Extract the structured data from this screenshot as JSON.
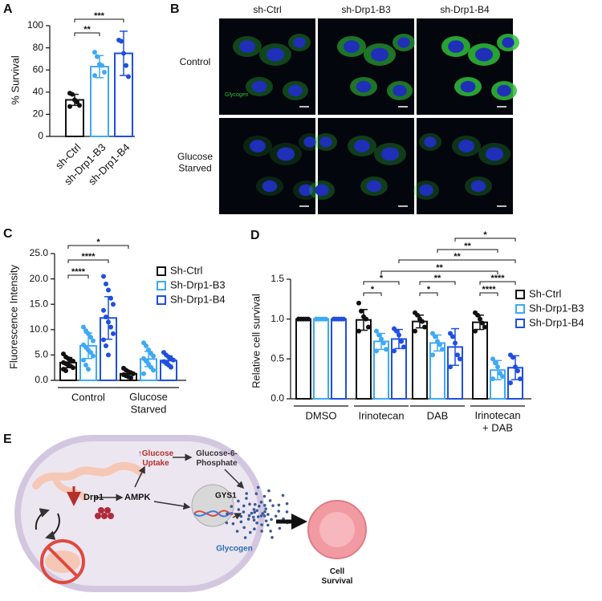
{
  "panels": [
    "A",
    "B",
    "C",
    "D",
    "E"
  ],
  "chart_data": [
    {
      "type": "bar",
      "ylabel": "% Survival",
      "categories": [
        "sh-Ctrl",
        "sh-Drp1-B3",
        "sh-Drp1-B4"
      ],
      "values": [
        33,
        63,
        75
      ],
      "errors": [
        5,
        10,
        20
      ],
      "points": [
        [
          39,
          38,
          33,
          31,
          28,
          27
        ],
        [
          76,
          72,
          65,
          64,
          58,
          55
        ],
        [
          87,
          86,
          75,
          64,
          54
        ]
      ],
      "colors": [
        "#111111",
        "#3ea9f5",
        "#1f4fe0"
      ],
      "ylim": [
        0,
        100
      ],
      "yticks": [
        0,
        20,
        40,
        60,
        80,
        100
      ],
      "significance": [
        "**",
        "***"
      ]
    },
    {
      "type": "bar",
      "ylabel": "Fluorescence Intensity",
      "categories": [
        "Control",
        "Glucose\nStarved"
      ],
      "series": [
        {
          "name": "Sh-Ctrl",
          "color": "#111111",
          "values": [
            3.5,
            1.3
          ],
          "errors": [
            1.0,
            0.5
          ],
          "points": [
            [
              5.2,
              4.6,
              4.3,
              4.0,
              3.8,
              3.5,
              3.3,
              3.0,
              2.8,
              2.5,
              2.2,
              1.9
            ],
            [
              2.4,
              2.0,
              1.7,
              1.5,
              1.3,
              1.1,
              0.9,
              0.7,
              0.5
            ]
          ]
        },
        {
          "name": "Sh-Drp1-B3",
          "color": "#3ea9f5",
          "values": [
            6.8,
            4.2
          ],
          "errors": [
            2.5,
            1.5
          ],
          "points": [
            [
              10.5,
              9.8,
              9.2,
              8.5,
              7.8,
              7.0,
              6.5,
              6.0,
              5.5,
              4.8,
              4.0,
              3.0,
              2.2
            ],
            [
              7.4,
              6.8,
              6.0,
              5.3,
              4.8,
              4.3,
              3.8,
              3.2,
              2.6,
              2.0,
              1.3
            ]
          ]
        },
        {
          "name": "Sh-Drp1-B4",
          "color": "#1f4fe0",
          "values": [
            12.3,
            3.9
          ],
          "errors": [
            4.2,
            0.9
          ],
          "points": [
            [
              20.5,
              19.0,
              17.8,
              16.2,
              15.0,
              13.8,
              12.5,
              11.5,
              10.5,
              9.2,
              8.0,
              6.8,
              5.0
            ],
            [
              5.5,
              5.0,
              4.6,
              4.3,
              4.0,
              3.7,
              3.4,
              3.0,
              2.6
            ]
          ]
        }
      ],
      "ylim": [
        0,
        25
      ],
      "yticks": [
        {
          "value": 0,
          "label": "0.0"
        },
        {
          "value": 5,
          "label": "5.0"
        },
        {
          "value": 10,
          "label": "10.0"
        },
        {
          "value": 15,
          "label": "15.0"
        },
        {
          "value": 20,
          "label": "20.0"
        },
        {
          "value": 25,
          "label": "25.0"
        }
      ],
      "significance": [
        "****",
        "****",
        "*"
      ]
    },
    {
      "type": "bar",
      "ylabel": "Relative cell survival",
      "categories": [
        "DMSO",
        "Irinotecan",
        "DAB",
        "Irinotecan\n+ DAB"
      ],
      "series": [
        {
          "name": "Sh-Ctrl",
          "color": "#111111",
          "values": [
            1.0,
            0.99,
            0.97,
            0.96
          ],
          "errors": [
            0,
            0.13,
            0.08,
            0.09
          ],
          "points": [
            [
              1,
              1,
              1,
              1,
              1,
              1
            ],
            [
              1.2,
              1.1,
              1.03,
              1.0,
              0.9,
              0.85
            ],
            [
              1.08,
              1.05,
              1.0,
              0.97,
              0.9,
              0.85
            ],
            [
              1.08,
              1.05,
              1.0,
              0.95,
              0.9,
              0.85
            ]
          ]
        },
        {
          "name": "Sh-Drp1-B3",
          "color": "#3ea9f5",
          "values": [
            1.0,
            0.72,
            0.7,
            0.36
          ],
          "errors": [
            0,
            0.1,
            0.1,
            0.12
          ],
          "points": [
            [
              1,
              1,
              1,
              1,
              1,
              1
            ],
            [
              0.85,
              0.8,
              0.75,
              0.7,
              0.62,
              0.6
            ],
            [
              0.82,
              0.78,
              0.72,
              0.68,
              0.62,
              0.55
            ],
            [
              0.5,
              0.45,
              0.4,
              0.32,
              0.28,
              0.25
            ]
          ]
        },
        {
          "name": "Sh-Drp1-B4",
          "color": "#1f4fe0",
          "values": [
            1.0,
            0.75,
            0.65,
            0.39
          ],
          "errors": [
            0,
            0.12,
            0.23,
            0.15
          ],
          "points": [
            [
              1,
              1,
              1,
              1,
              1,
              1
            ],
            [
              0.88,
              0.85,
              0.8,
              0.72,
              0.65,
              0.6
            ],
            [
              0.82,
              0.78,
              0.7,
              0.55,
              0.5,
              0.4
            ],
            [
              0.55,
              0.52,
              0.4,
              0.35,
              0.25,
              0.2
            ]
          ]
        }
      ],
      "ylim": [
        0,
        1.5
      ],
      "yticks": [
        {
          "value": 0,
          "label": "0.0"
        },
        {
          "value": 0.5,
          "label": "0.5"
        },
        {
          "value": 1,
          "label": "1.0"
        },
        {
          "value": 1.5,
          "label": "1.5"
        }
      ],
      "significance": [
        "*",
        "**",
        "**",
        "**",
        "*",
        "*",
        "*",
        "**",
        "****",
        "****"
      ]
    }
  ],
  "microscopy": {
    "columns": [
      "sh-Ctrl",
      "sh-Drp1-B3",
      "sh-Drp1-B4"
    ],
    "rows": [
      "Control",
      "Glucose\nStarved"
    ],
    "stain_label": "Glycogen"
  },
  "diagram": {
    "uptake": "↑Glucose\nUptake",
    "g6p": "Glucose-6-\nPhosphate",
    "drp1": "Drp1",
    "ampk": "AMPK",
    "gys1": "GYS1",
    "glycogen": "Glycogen",
    "survival": "Cell\nSurvival"
  }
}
